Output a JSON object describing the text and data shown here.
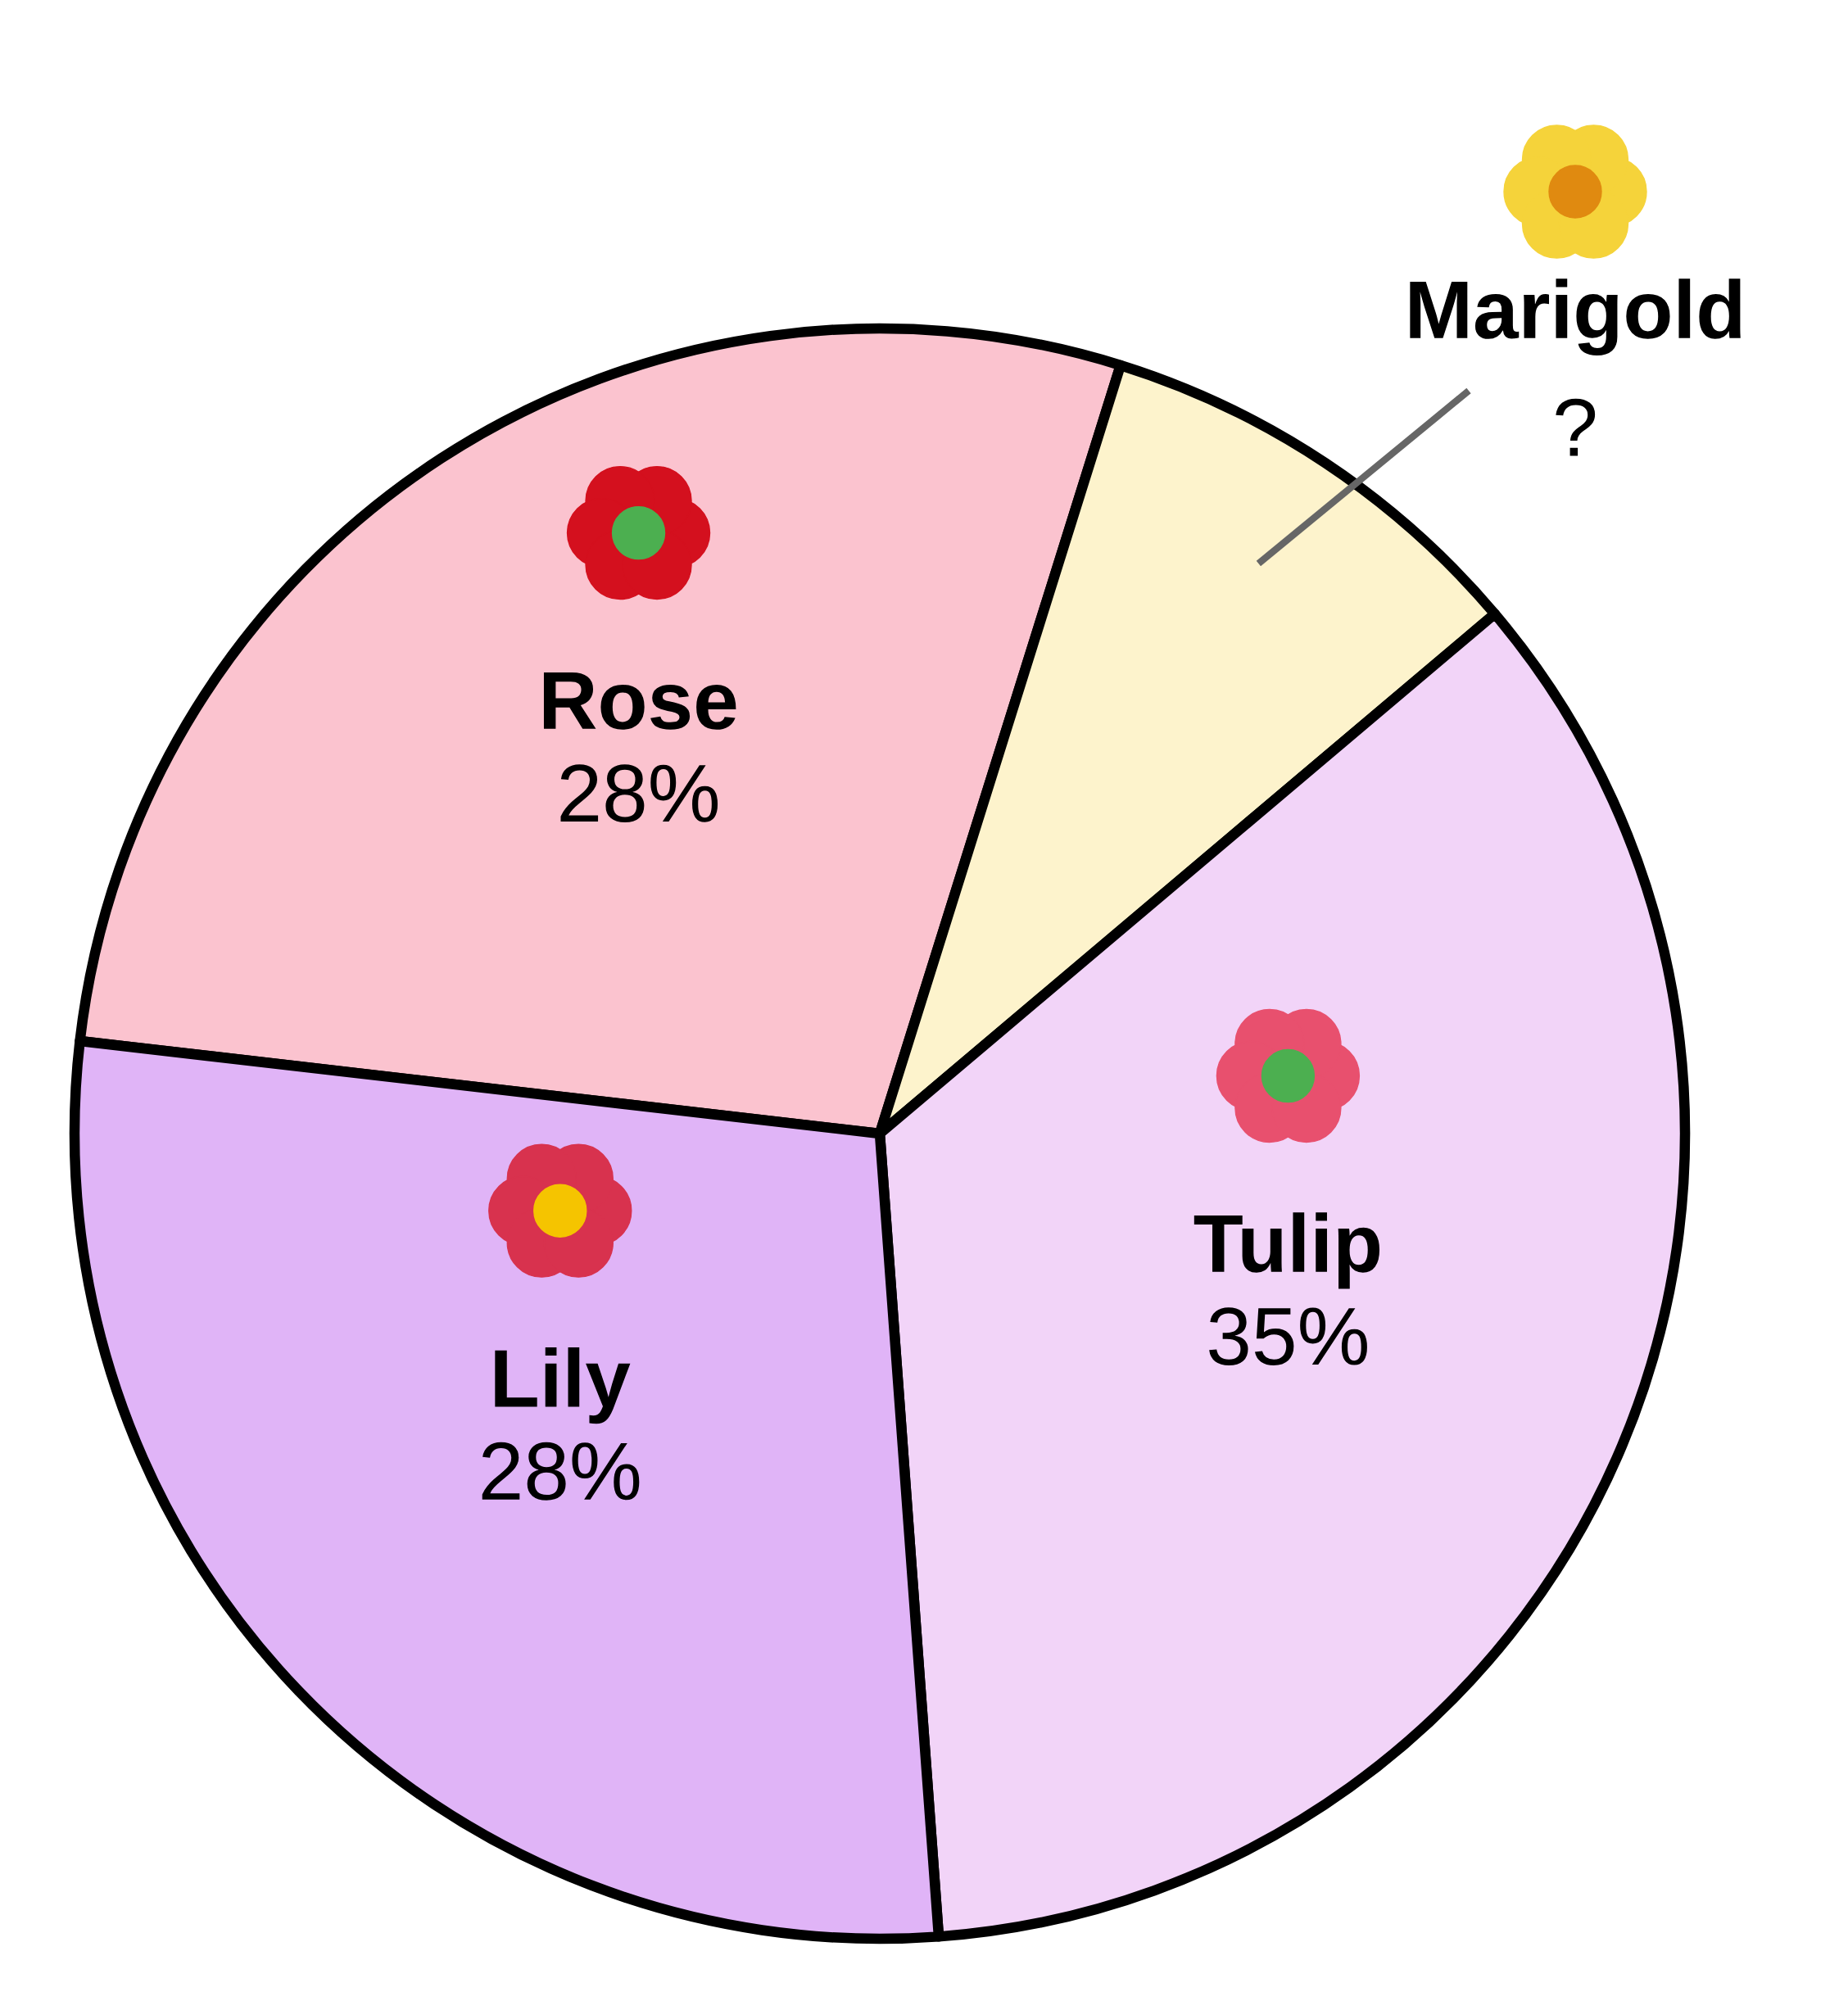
{
  "chart_data": {
    "type": "pie",
    "categories": [
      "Rose",
      "Marigold",
      "Tulip",
      "Lily"
    ],
    "values": [
      28,
      9,
      35,
      28
    ],
    "value_labels": [
      "28%",
      "?",
      "35%",
      "28%"
    ],
    "colors": [
      "#fbc3cf",
      "#fdf3cc",
      "#f2d4f8",
      "#e0b4f7"
    ]
  }
}
